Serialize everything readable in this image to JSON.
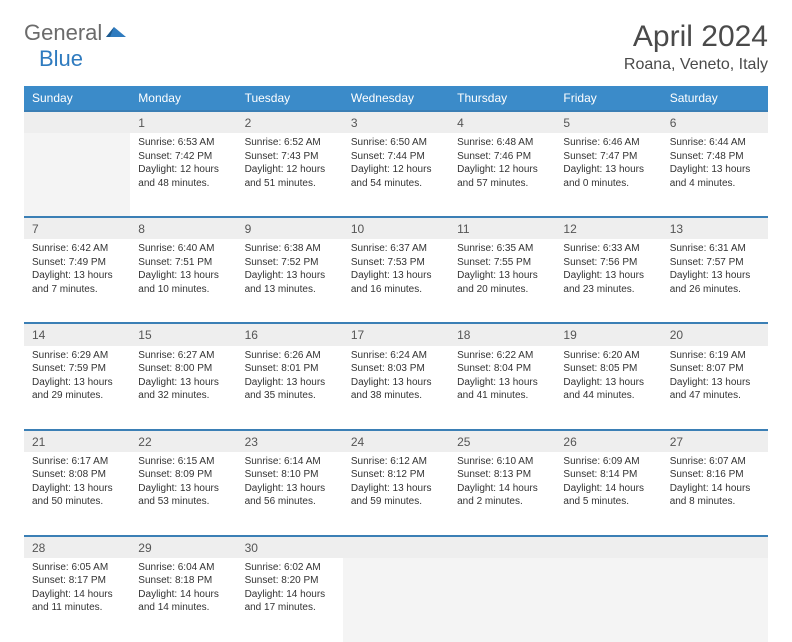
{
  "logo": {
    "part1": "General",
    "part2": "Blue"
  },
  "title": "April 2024",
  "location": "Roana, Veneto, Italy",
  "colors": {
    "header_bg": "#3b8bc9",
    "header_text": "#ffffff",
    "daynum_bg": "#eeeeee",
    "daynum_border": "#3b7fb5",
    "empty_bg": "#f4f4f4",
    "text": "#333333",
    "logo_gray": "#6b6b6b",
    "logo_blue": "#2f7bbf"
  },
  "typography": {
    "title_fontsize": 30,
    "location_fontsize": 16,
    "header_fontsize": 12,
    "daynum_fontsize": 12,
    "cell_fontsize": 10
  },
  "weekdays": [
    "Sunday",
    "Monday",
    "Tuesday",
    "Wednesday",
    "Thursday",
    "Friday",
    "Saturday"
  ],
  "first_weekday_index": 1,
  "days": [
    {
      "n": 1,
      "sunrise": "6:53 AM",
      "sunset": "7:42 PM",
      "daylight": "12 hours and 48 minutes."
    },
    {
      "n": 2,
      "sunrise": "6:52 AM",
      "sunset": "7:43 PM",
      "daylight": "12 hours and 51 minutes."
    },
    {
      "n": 3,
      "sunrise": "6:50 AM",
      "sunset": "7:44 PM",
      "daylight": "12 hours and 54 minutes."
    },
    {
      "n": 4,
      "sunrise": "6:48 AM",
      "sunset": "7:46 PM",
      "daylight": "12 hours and 57 minutes."
    },
    {
      "n": 5,
      "sunrise": "6:46 AM",
      "sunset": "7:47 PM",
      "daylight": "13 hours and 0 minutes."
    },
    {
      "n": 6,
      "sunrise": "6:44 AM",
      "sunset": "7:48 PM",
      "daylight": "13 hours and 4 minutes."
    },
    {
      "n": 7,
      "sunrise": "6:42 AM",
      "sunset": "7:49 PM",
      "daylight": "13 hours and 7 minutes."
    },
    {
      "n": 8,
      "sunrise": "6:40 AM",
      "sunset": "7:51 PM",
      "daylight": "13 hours and 10 minutes."
    },
    {
      "n": 9,
      "sunrise": "6:38 AM",
      "sunset": "7:52 PM",
      "daylight": "13 hours and 13 minutes."
    },
    {
      "n": 10,
      "sunrise": "6:37 AM",
      "sunset": "7:53 PM",
      "daylight": "13 hours and 16 minutes."
    },
    {
      "n": 11,
      "sunrise": "6:35 AM",
      "sunset": "7:55 PM",
      "daylight": "13 hours and 20 minutes."
    },
    {
      "n": 12,
      "sunrise": "6:33 AM",
      "sunset": "7:56 PM",
      "daylight": "13 hours and 23 minutes."
    },
    {
      "n": 13,
      "sunrise": "6:31 AM",
      "sunset": "7:57 PM",
      "daylight": "13 hours and 26 minutes."
    },
    {
      "n": 14,
      "sunrise": "6:29 AM",
      "sunset": "7:59 PM",
      "daylight": "13 hours and 29 minutes."
    },
    {
      "n": 15,
      "sunrise": "6:27 AM",
      "sunset": "8:00 PM",
      "daylight": "13 hours and 32 minutes."
    },
    {
      "n": 16,
      "sunrise": "6:26 AM",
      "sunset": "8:01 PM",
      "daylight": "13 hours and 35 minutes."
    },
    {
      "n": 17,
      "sunrise": "6:24 AM",
      "sunset": "8:03 PM",
      "daylight": "13 hours and 38 minutes."
    },
    {
      "n": 18,
      "sunrise": "6:22 AM",
      "sunset": "8:04 PM",
      "daylight": "13 hours and 41 minutes."
    },
    {
      "n": 19,
      "sunrise": "6:20 AM",
      "sunset": "8:05 PM",
      "daylight": "13 hours and 44 minutes."
    },
    {
      "n": 20,
      "sunrise": "6:19 AM",
      "sunset": "8:07 PM",
      "daylight": "13 hours and 47 minutes."
    },
    {
      "n": 21,
      "sunrise": "6:17 AM",
      "sunset": "8:08 PM",
      "daylight": "13 hours and 50 minutes."
    },
    {
      "n": 22,
      "sunrise": "6:15 AM",
      "sunset": "8:09 PM",
      "daylight": "13 hours and 53 minutes."
    },
    {
      "n": 23,
      "sunrise": "6:14 AM",
      "sunset": "8:10 PM",
      "daylight": "13 hours and 56 minutes."
    },
    {
      "n": 24,
      "sunrise": "6:12 AM",
      "sunset": "8:12 PM",
      "daylight": "13 hours and 59 minutes."
    },
    {
      "n": 25,
      "sunrise": "6:10 AM",
      "sunset": "8:13 PM",
      "daylight": "14 hours and 2 minutes."
    },
    {
      "n": 26,
      "sunrise": "6:09 AM",
      "sunset": "8:14 PM",
      "daylight": "14 hours and 5 minutes."
    },
    {
      "n": 27,
      "sunrise": "6:07 AM",
      "sunset": "8:16 PM",
      "daylight": "14 hours and 8 minutes."
    },
    {
      "n": 28,
      "sunrise": "6:05 AM",
      "sunset": "8:17 PM",
      "daylight": "14 hours and 11 minutes."
    },
    {
      "n": 29,
      "sunrise": "6:04 AM",
      "sunset": "8:18 PM",
      "daylight": "14 hours and 14 minutes."
    },
    {
      "n": 30,
      "sunrise": "6:02 AM",
      "sunset": "8:20 PM",
      "daylight": "14 hours and 17 minutes."
    }
  ],
  "labels": {
    "sunrise": "Sunrise:",
    "sunset": "Sunset:",
    "daylight": "Daylight:"
  }
}
